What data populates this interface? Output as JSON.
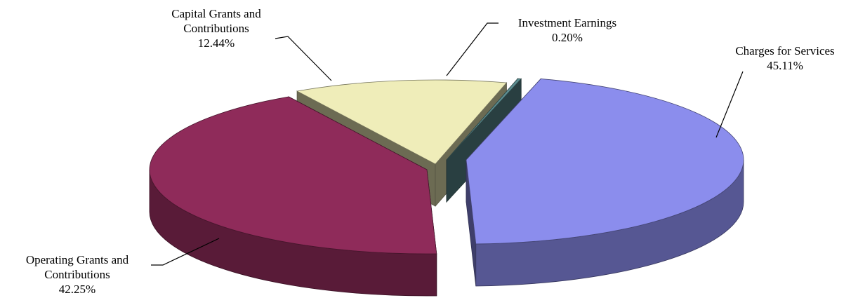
{
  "chart_data": {
    "type": "pie",
    "title": "",
    "slices": [
      {
        "label": [
          "Charges for Services"
        ],
        "value": 45.11,
        "value_text": "45.11%",
        "color": "#8b8ded"
      },
      {
        "label": [
          "Investment Earnings"
        ],
        "value": 0.2,
        "value_text": "0.20%",
        "color": "#5c8d90"
      },
      {
        "label": [
          "Capital Grants and",
          "Contributions"
        ],
        "value": 12.44,
        "value_text": "12.44%",
        "color": "#efedb9"
      },
      {
        "label": [
          "Operating Grants and",
          "Contributions"
        ],
        "value": 42.25,
        "value_text": "42.25%",
        "color": "#8f2b5a"
      }
    ],
    "legend": "none",
    "style": "3d-exploded"
  }
}
